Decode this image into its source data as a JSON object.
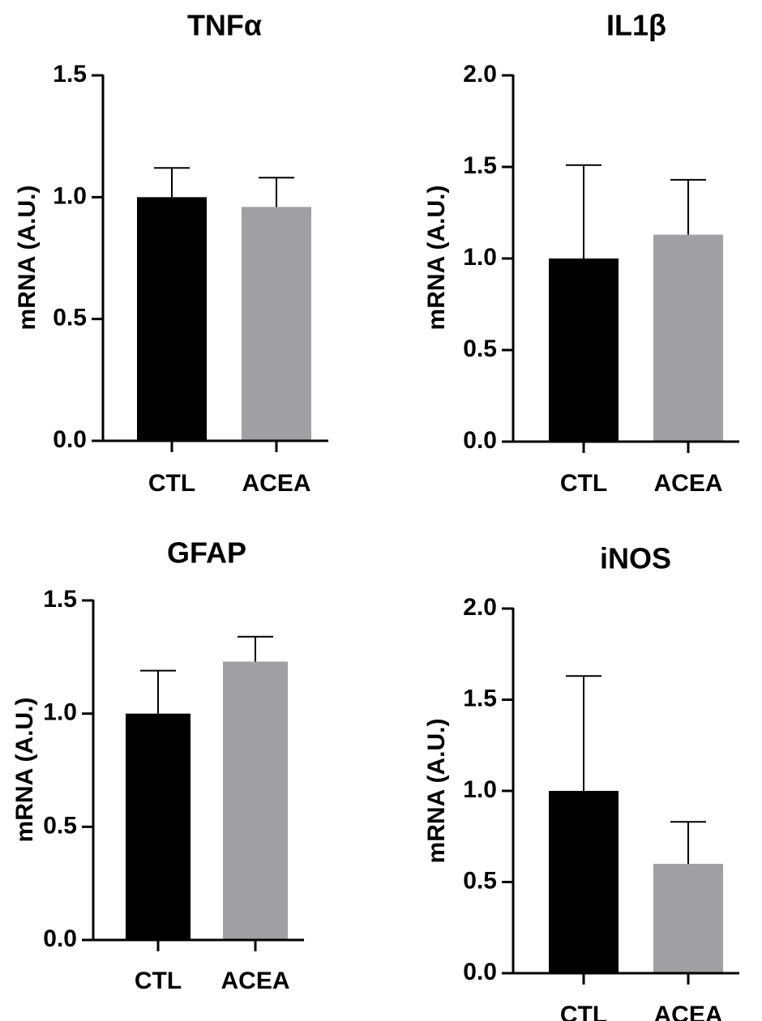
{
  "figure": {
    "bar_colors": {
      "CTL": "#000000",
      "ACEA": "#a0a0a2"
    }
  },
  "chart_data": [
    {
      "type": "bar",
      "title": "TNFα",
      "ylabel": "mRNA (A.U.)",
      "xlabel": "",
      "categories": [
        "CTL",
        "ACEA"
      ],
      "values": [
        1.0,
        0.96
      ],
      "errors": [
        0.12,
        0.12
      ],
      "ylim": [
        0,
        1.5
      ],
      "yticks": [
        0.0,
        0.5,
        1.0,
        1.5
      ],
      "ytick_labels": [
        "0.0",
        "0.5",
        "1.0",
        "1.5"
      ]
    },
    {
      "type": "bar",
      "title": "IL1β",
      "ylabel": "mRNA (A.U.)",
      "xlabel": "",
      "categories": [
        "CTL",
        "ACEA"
      ],
      "values": [
        1.0,
        1.13
      ],
      "errors": [
        0.51,
        0.3
      ],
      "ylim": [
        0,
        2.0
      ],
      "yticks": [
        0.0,
        0.5,
        1.0,
        1.5,
        2.0
      ],
      "ytick_labels": [
        "0.0",
        "0.5",
        "1.0",
        "1.5",
        "2.0"
      ]
    },
    {
      "type": "bar",
      "title": "GFAP",
      "ylabel": "mRNA (A.U.)",
      "xlabel": "",
      "categories": [
        "CTL",
        "ACEA"
      ],
      "values": [
        1.0,
        1.23
      ],
      "errors": [
        0.19,
        0.11
      ],
      "ylim": [
        0,
        1.5
      ],
      "yticks": [
        0.0,
        0.5,
        1.0,
        1.5
      ],
      "ytick_labels": [
        "0.0",
        "0.5",
        "1.0",
        "1.5"
      ]
    },
    {
      "type": "bar",
      "title": "iNOS",
      "ylabel": "mRNA (A.U.)",
      "xlabel": "",
      "categories": [
        "CTL",
        "ACEA"
      ],
      "values": [
        1.0,
        0.6
      ],
      "errors": [
        0.63,
        0.23
      ],
      "ylim": [
        0,
        2.0
      ],
      "yticks": [
        0.0,
        0.5,
        1.0,
        1.5,
        2.0
      ],
      "ytick_labels": [
        "0.0",
        "0.5",
        "1.0",
        "1.5",
        "2.0"
      ]
    }
  ]
}
